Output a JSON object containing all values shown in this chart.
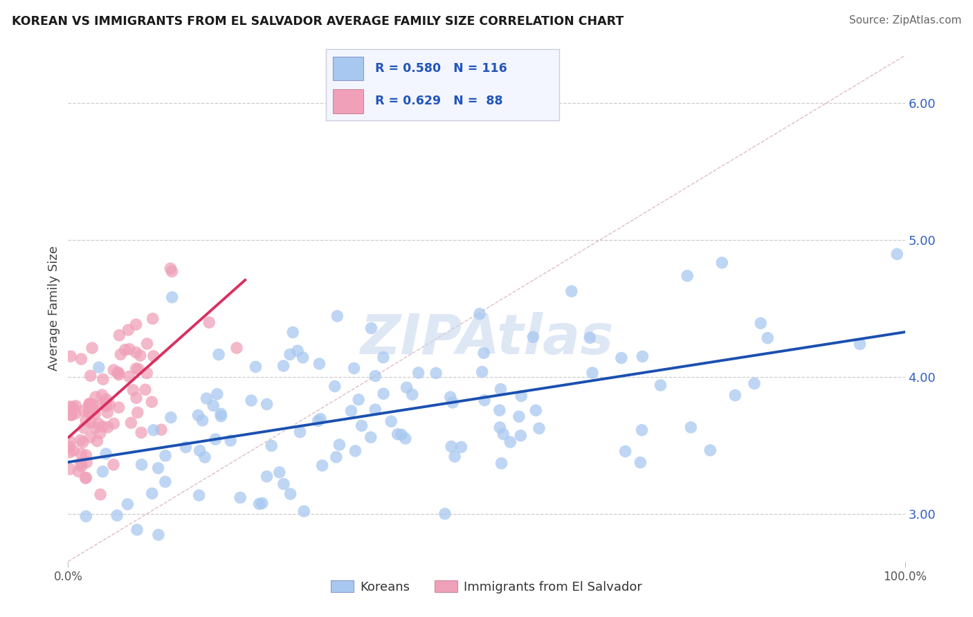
{
  "title": "KOREAN VS IMMIGRANTS FROM EL SALVADOR AVERAGE FAMILY SIZE CORRELATION CHART",
  "source": "Source: ZipAtlas.com",
  "ylabel": "Average Family Size",
  "xlabel": "",
  "series": [
    {
      "name": "Koreans",
      "color": "#a8c8f0",
      "line_color": "#1a50b0",
      "R": 0.58,
      "N": 116
    },
    {
      "name": "Immigrants from El Salvador",
      "color": "#f0a0b8",
      "line_color": "#d83060",
      "R": 0.629,
      "N": 88
    }
  ],
  "xlim": [
    0.0,
    1.0
  ],
  "ylim": [
    2.65,
    6.35
  ],
  "right_yticks": [
    3.0,
    4.0,
    5.0,
    6.0
  ],
  "right_ytick_labels": [
    "3.00",
    "4.00",
    "5.00",
    "6.00"
  ],
  "xtick_labels": [
    "0.0%",
    "100.0%"
  ],
  "background_color": "#ffffff",
  "grid_color": "#cccccc",
  "watermark_color": "#c8d8ee",
  "legend_box_bg": "#f4f6ff",
  "legend_box_edge": "#ccccdd"
}
